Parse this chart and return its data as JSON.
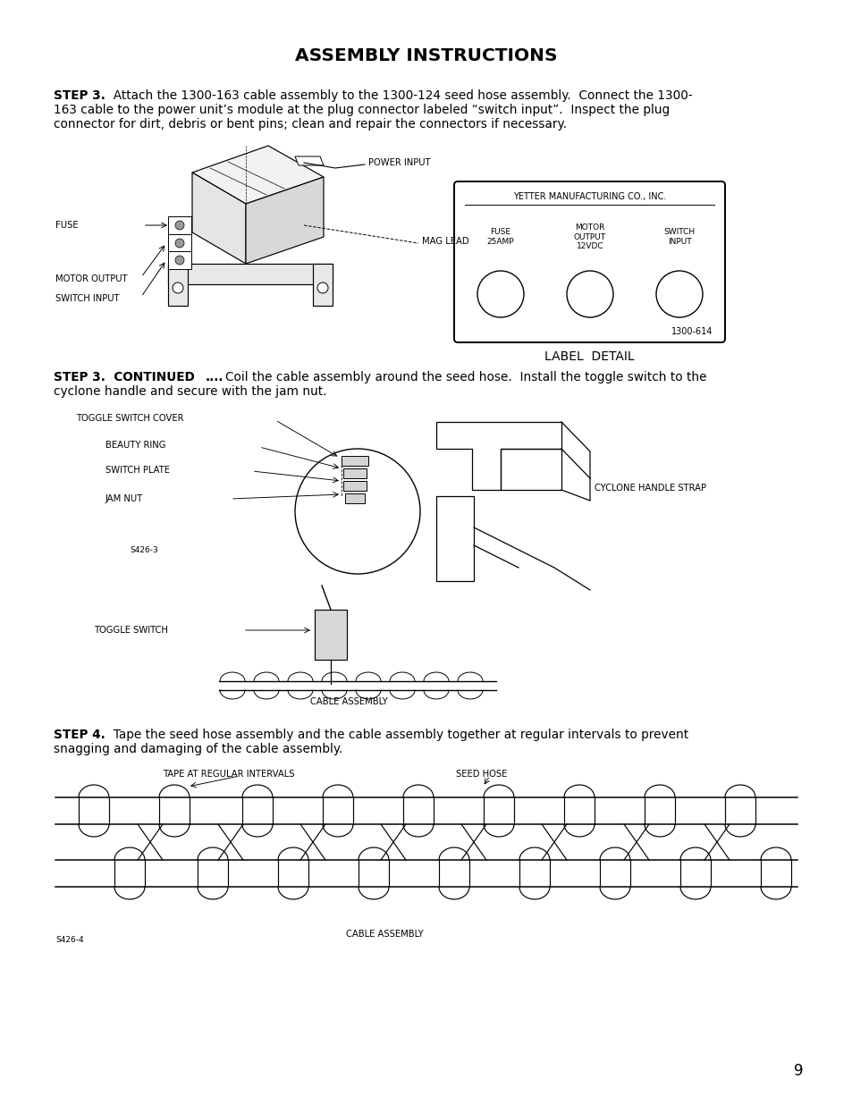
{
  "title": "ASSEMBLY INSTRUCTIONS",
  "bg_color": "#ffffff",
  "text_color": "#000000",
  "page_number": "9",
  "step3_bold": "STEP 3.",
  "step3_line1": "  Attach the 1300-163 cable assembly to the 1300-124 seed hose assembly.  Connect the 1300-",
  "step3_line2": "163 cable to the power unit’s module at the plug connector labeled “switch input”.  Inspect the plug",
  "step3_line3": "connector for dirt, debris or bent pins; clean and repair the connectors if necessary.",
  "step3cont_bold": "STEP 3.  CONTINUED",
  "step3cont_bold2": "....",
  "step3cont_line1": "Coil the cable assembly around the seed hose.  Install the toggle switch to the",
  "step3cont_line2": "cyclone handle and secure with the jam nut.",
  "step4_bold": "STEP 4.",
  "step4_line1": "  Tape the seed hose assembly and the cable assembly together at regular intervals to prevent",
  "step4_line2": "snagging and damaging of the cable assembly.",
  "label_box_title": "YETTER MANUFACTURING CO., INC.",
  "label_fuse": "FUSE\n25AMP",
  "label_motor": "MOTOR\nOUTPUT\n12VDC",
  "label_switch": "SWITCH\nINPUT",
  "label_number": "1300-614",
  "label_detail": "LABEL  DETAIL",
  "d1_power_input": "POWER INPUT",
  "d1_fuse": "FUSE",
  "d1_mag_lead": "MAG LEAD",
  "d1_motor_output": "MOTOR OUTPUT",
  "d1_switch_input": "SWITCH INPUT",
  "d2_toggle_cover": "TOGGLE SWITCH COVER",
  "d2_beauty_ring": "BEAUTY RING",
  "d2_switch_plate": "SWITCH PLATE",
  "d2_jam_nut": "JAM NUT",
  "d2_s426_3": "S426-3",
  "d2_toggle_switch": "TOGGLE SWITCH",
  "d2_cable_assy": "CABLE ASSEMBLY",
  "d2_cyclone_strap": "CYCLONE HANDLE STRAP",
  "d3_tape": "TAPE AT REGULAR INTERVALS",
  "d3_seed_hose": "SEED HOSE",
  "d3_cable_assy": "CABLE ASSEMBLY",
  "d3_s426_4": "S426-4"
}
